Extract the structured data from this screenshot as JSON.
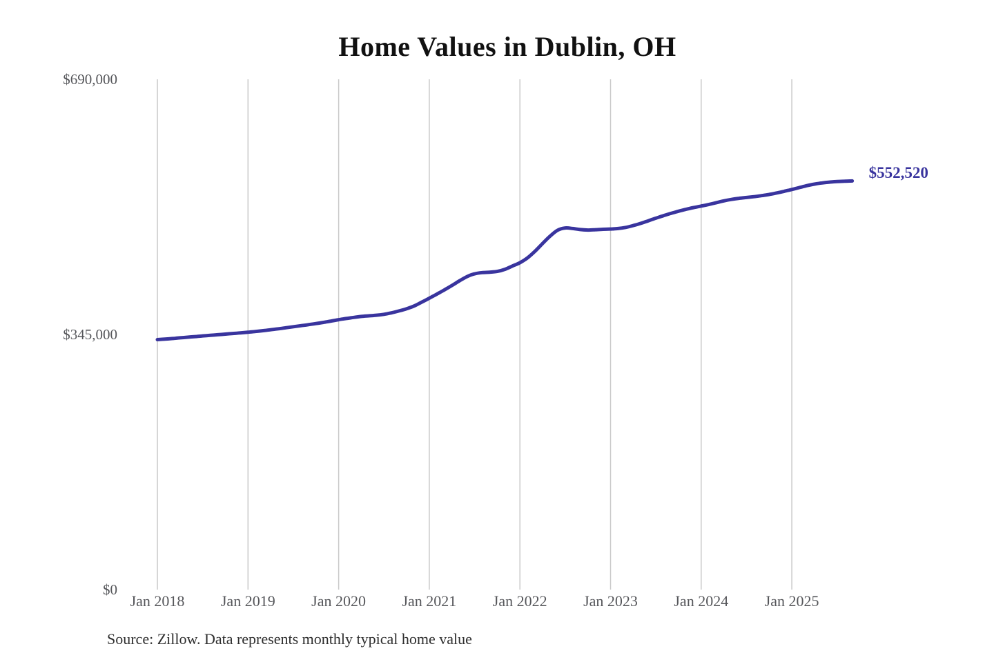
{
  "header": {
    "title": "Home Values in Dublin, OH"
  },
  "footer": {
    "source_note": "Source: Zillow. Data represents monthly typical home value"
  },
  "colors": {
    "line": "#39349e",
    "end_label": "#39349e",
    "grid": "#c9c9c9",
    "axis_text": "#55565a",
    "title_text": "#111111",
    "source_text": "#2e2e2e",
    "background": "#ffffff"
  },
  "chart_data": {
    "type": "line",
    "title": "Home Values in Dublin, OH",
    "xlabel": "",
    "ylabel": "",
    "ylim": [
      0,
      690000
    ],
    "grid": "vertical-only",
    "legend_position": "none",
    "y_ticks": [
      {
        "value": 0,
        "label": "$0"
      },
      {
        "value": 345000,
        "label": "$345,000"
      },
      {
        "value": 690000,
        "label": "$690,000"
      }
    ],
    "x_ticks": [
      {
        "month_index": 0,
        "label": "Jan 2018"
      },
      {
        "month_index": 12,
        "label": "Jan 2019"
      },
      {
        "month_index": 24,
        "label": "Jan 2020"
      },
      {
        "month_index": 36,
        "label": "Jan 2021"
      },
      {
        "month_index": 48,
        "label": "Jan 2022"
      },
      {
        "month_index": 60,
        "label": "Jan 2023"
      },
      {
        "month_index": 72,
        "label": "Jan 2024"
      },
      {
        "month_index": 84,
        "label": "Jan 2025"
      }
    ],
    "end_label": "$552,520",
    "end_value": 552520,
    "series": [
      {
        "name": "Monthly typical home value",
        "start": "Jan 2018",
        "end": "Sep 2025",
        "points_per_month": 1,
        "values": [
          338000,
          338700,
          339500,
          340400,
          341300,
          342100,
          343000,
          343800,
          344600,
          345500,
          346300,
          347100,
          348000,
          349000,
          350100,
          351300,
          352600,
          354000,
          355400,
          356800,
          358200,
          359700,
          361300,
          363100,
          365000,
          366500,
          368000,
          369300,
          370200,
          371000,
          372200,
          374200,
          376800,
          379800,
          383500,
          388700,
          394000,
          399500,
          405200,
          411200,
          417500,
          423200,
          427000,
          428600,
          429200,
          430200,
          433000,
          437500,
          442000,
          448500,
          457500,
          468000,
          478000,
          486000,
          489000,
          488200,
          486800,
          486200,
          486600,
          487200,
          487600,
          488200,
          489700,
          492200,
          495200,
          498700,
          502200,
          505600,
          508700,
          511600,
          514200,
          516600,
          518600,
          520700,
          523200,
          525600,
          527600,
          529100,
          530200,
          531300,
          532700,
          534300,
          536300,
          538600,
          541000,
          543600,
          546200,
          548300,
          549900,
          551000,
          551700,
          552200,
          552520
        ]
      }
    ]
  }
}
